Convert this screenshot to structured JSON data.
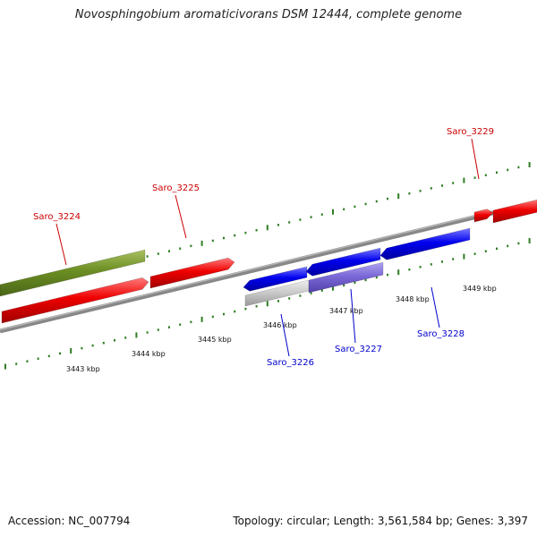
{
  "title": "Novosphingobium aromaticivorans DSM 12444, complete genome",
  "footer": {
    "accession": "Accession: NC_007794",
    "topology": "Topology: circular; Length: 3,561,584 bp; Genes: 3,397"
  },
  "colors": {
    "forward_gene": "#ee0000",
    "reverse_gene": "#0000ee",
    "olive_gene": "#6b8e23",
    "purple_gene": "#7b68d8",
    "grey_gene": "#c0c0c0",
    "backbone": "#888888",
    "tick": "#2e7d22",
    "forward_label": "#cc0000",
    "reverse_label": "#0000cc"
  },
  "kbp_labels": [
    "3443 kbp",
    "3444 kbp",
    "3445 kbp",
    "3446 kbp",
    "3447 kbp",
    "3448 kbp",
    "3449 kbp"
  ],
  "gene_labels": [
    {
      "text": "Saro_3224",
      "strand": "forward"
    },
    {
      "text": "Saro_3225",
      "strand": "forward"
    },
    {
      "text": "Saro_3229",
      "strand": "forward"
    },
    {
      "text": "Saro_3226",
      "strand": "reverse"
    },
    {
      "text": "Saro_3227",
      "strand": "reverse"
    },
    {
      "text": "Saro_3228",
      "strand": "reverse"
    }
  ]
}
